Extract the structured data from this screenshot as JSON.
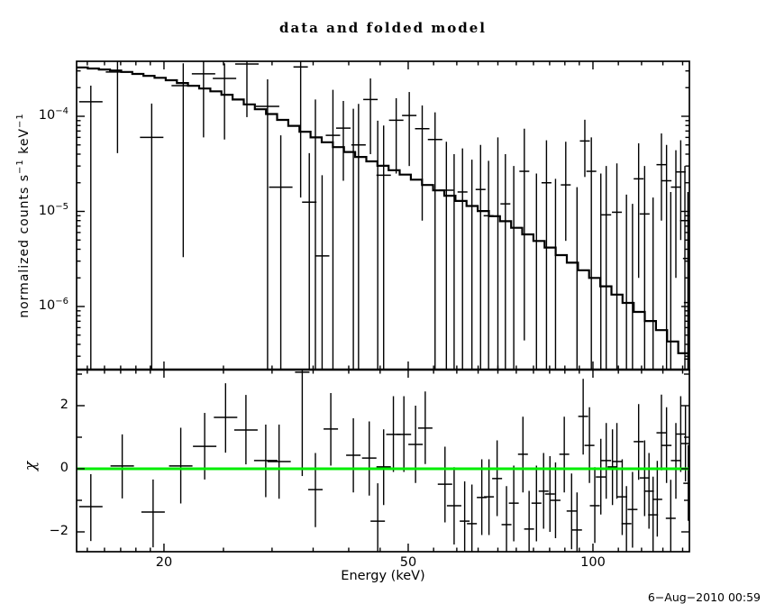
{
  "chart_data": {
    "type": "line",
    "title": "data and folded model",
    "xlabel": "Energy (keV)",
    "timestamp": "6−Aug−2010 00:59",
    "x_scale": "log",
    "x_range": [
      14.41,
      143.6
    ],
    "x_major_ticks": [
      20,
      50,
      100
    ],
    "x_minor_ticks": [
      15,
      16,
      17,
      18,
      19,
      25,
      30,
      35,
      40,
      45,
      55,
      60,
      65,
      70,
      75,
      80,
      85,
      90,
      95,
      110,
      120,
      130,
      140
    ],
    "grid": false,
    "legend": "none",
    "panels": [
      {
        "id": "spectrum",
        "ylabel_parts": [
          {
            "text": "normalized counts s"
          },
          {
            "text": "−1",
            "sup": true
          },
          {
            "text": " keV"
          },
          {
            "text": "−1",
            "sup": true
          }
        ],
        "y_scale": "log",
        "y_range": [
          2.17e-07,
          0.0003785
        ],
        "y_major_ticks": [
          {
            "base": "10",
            "exp": "−4",
            "value": 0.0001
          },
          {
            "base": "10",
            "exp": "−5",
            "value": 1e-05
          },
          {
            "base": "10",
            "exp": "−6",
            "value": 1e-06
          }
        ],
        "model_color": "#000000",
        "model_n_bins": 55,
        "model_anchors": [
          [
            14.41,
            0.00033
          ],
          [
            17,
            0.0003
          ],
          [
            20,
            0.00025
          ],
          [
            25,
            0.000175
          ],
          [
            30,
            0.000105
          ],
          [
            35,
            6.2e-05
          ],
          [
            42,
            3.7e-05
          ],
          [
            50,
            2.37e-05
          ],
          [
            60,
            1.35e-05
          ],
          [
            72,
            7.9e-06
          ],
          [
            85,
            4.2e-06
          ],
          [
            100,
            2.06e-06
          ],
          [
            115,
            1.05e-06
          ],
          [
            130,
            5.5e-07
          ],
          [
            143.6,
            2.8e-07
          ]
        ],
        "points_note": "each point: [energy_keV, value, err_low_end, err_high_end]; null value = bare error bar; null end = clipped at panel edge",
        "points": [
          [
            15.2,
            0.000142,
            null,
            0.00021
          ],
          [
            16.8,
            0.000292,
            4.1e-05,
            null
          ],
          [
            19.1,
            6e-05,
            null,
            0.000136
          ],
          [
            21.5,
            0.00021,
            3.3e-06,
            0.00036
          ],
          [
            23.2,
            0.00028,
            6e-05,
            null
          ],
          [
            25.1,
            0.00025,
            5.7e-05,
            0.00036
          ],
          [
            27.3,
            0.000355,
            9.8e-05,
            null
          ],
          [
            29.5,
            0.000127,
            null,
            0.000245
          ],
          [
            31.0,
            1.8e-05,
            null,
            6.3e-05
          ],
          [
            33.4,
            0.00033,
            1.4e-05,
            null
          ],
          [
            34.5,
            1.25e-05,
            null,
            4.1e-05
          ],
          [
            35.3,
            null,
            null,
            0.00015
          ],
          [
            36.2,
            3.4e-06,
            null,
            2.4e-05
          ],
          [
            37.7,
            6.3e-05,
            null,
            0.00019
          ],
          [
            39.2,
            7.5e-05,
            2.1e-05,
            0.000145
          ],
          [
            40.7,
            null,
            null,
            0.00012
          ],
          [
            41.5,
            5e-05,
            null,
            0.000135
          ],
          [
            43.4,
            0.00015,
            4e-05,
            0.00025
          ],
          [
            44.6,
            null,
            null,
            9e-05
          ],
          [
            45.6,
            2.4e-05,
            null,
            8e-05
          ],
          [
            47.8,
            9.1e-05,
            2.5e-05,
            0.000155
          ],
          [
            50.2,
            0.000102,
            3e-05,
            0.00018
          ],
          [
            52.7,
            7.4e-05,
            8e-06,
            0.00013
          ],
          [
            55.3,
            5.7e-05,
            null,
            0.00011
          ],
          [
            57.7,
            1.67e-05,
            null,
            5.4e-05
          ],
          [
            59.4,
            null,
            null,
            4e-05
          ],
          [
            61.3,
            1.6e-05,
            null,
            4.6e-05
          ],
          [
            63.5,
            null,
            null,
            3.5e-05
          ],
          [
            65.6,
            1.7e-05,
            null,
            5e-05
          ],
          [
            67.6,
            9e-06,
            null,
            3.4e-05
          ],
          [
            70.0,
            null,
            null,
            6e-05
          ],
          [
            72.0,
            1.2e-05,
            null,
            4e-05
          ],
          [
            74.3,
            null,
            null,
            3e-05
          ],
          [
            77.3,
            2.64e-05,
            4.4e-07,
            7.4e-05
          ],
          [
            80.9,
            null,
            null,
            2.5e-05
          ],
          [
            84.0,
            2e-05,
            null,
            5.6e-05
          ],
          [
            86.9,
            null,
            null,
            2.2e-05
          ],
          [
            90.3,
            1.9e-05,
            4.9e-06,
            5.4e-05
          ],
          [
            94.2,
            null,
            null,
            1.8e-05
          ],
          [
            97.0,
            5.5e-05,
            2.3e-05,
            9.2e-05
          ],
          [
            99.4,
            2.64e-05,
            null,
            6e-05
          ],
          [
            103.0,
            null,
            null,
            2.5e-05
          ],
          [
            105.1,
            9.2e-06,
            null,
            3e-05
          ],
          [
            109.4,
            9.8e-06,
            null,
            3.2e-05
          ],
          [
            113.4,
            null,
            null,
            1.5e-05
          ],
          [
            116.0,
            null,
            null,
            1.2e-05
          ],
          [
            118.7,
            2.2e-05,
            2e-06,
            5.2e-05
          ],
          [
            121.4,
            9.4e-06,
            null,
            3e-05
          ],
          [
            125.3,
            null,
            null,
            1.4e-05
          ],
          [
            129.3,
            3.1e-05,
            8e-06,
            6.6e-05
          ],
          [
            131.8,
            2.1e-05,
            null,
            5e-05
          ],
          [
            133.9,
            null,
            null,
            1.6e-05
          ],
          [
            136.5,
            1.8e-05,
            2e-06,
            4.4e-05
          ],
          [
            139.0,
            2.6e-05,
            5e-06,
            5.6e-05
          ],
          [
            141.2,
            8e-06,
            null,
            3e-05
          ],
          [
            142.8,
            3.2e-06,
            null,
            1.6e-05
          ],
          [
            143.3,
            1.1e-06,
            null,
            8e-06
          ],
          [
            143.5,
            2.8e-07,
            null,
            4e-06
          ]
        ]
      },
      {
        "id": "residuals",
        "ylabel": "χ",
        "y_scale": "linear",
        "y_range": [
          -2.63,
          3.14
        ],
        "y_major_ticks": [
          {
            "label": "2",
            "value": 2
          },
          {
            "label": "0",
            "value": 0
          },
          {
            "label": "−2",
            "value": -2
          }
        ],
        "y_minor_ticks": [
          3,
          1,
          -1
        ],
        "zero_line": {
          "value": 0,
          "color": "#00ee00"
        },
        "points_note": "each point: [energy_keV, chi, err_low_end, err_high_end]; null end = clipped at panel edge",
        "points": [
          [
            15.2,
            -1.2,
            -2.29,
            -0.17
          ],
          [
            17.1,
            0.09,
            -0.94,
            1.09
          ],
          [
            19.2,
            -1.37,
            -2.49,
            -0.34
          ],
          [
            21.3,
            0.09,
            -1.1,
            1.3
          ],
          [
            23.3,
            0.71,
            -0.34,
            1.77
          ],
          [
            25.2,
            1.63,
            0.51,
            2.71
          ],
          [
            27.2,
            1.23,
            0.14,
            2.34
          ],
          [
            29.3,
            0.26,
            -0.9,
            1.4
          ],
          [
            30.8,
            0.23,
            -0.95,
            1.4
          ],
          [
            33.6,
            3.06,
            -0.23,
            null
          ],
          [
            35.3,
            -0.66,
            -1.85,
            0.5
          ],
          [
            37.4,
            1.26,
            0.1,
            2.4
          ],
          [
            40.7,
            0.43,
            -0.75,
            1.6
          ],
          [
            43.2,
            0.34,
            -0.85,
            1.5
          ],
          [
            44.6,
            -1.66,
            null,
            -0.46
          ],
          [
            45.6,
            0.06,
            -1.15,
            1.25
          ],
          [
            47.3,
            1.09,
            -0.1,
            2.3
          ],
          [
            49.2,
            1.09,
            -0.1,
            2.3
          ],
          [
            51.4,
            0.77,
            -0.45,
            2.0
          ],
          [
            53.3,
            1.29,
            0.15,
            2.45
          ],
          [
            57.4,
            -0.49,
            -1.7,
            0.7
          ],
          [
            59.4,
            -1.17,
            -2.4,
            0.05
          ],
          [
            61.8,
            -1.66,
            null,
            -0.4
          ],
          [
            63.5,
            -1.74,
            null,
            -0.5
          ],
          [
            65.9,
            -0.91,
            -2.1,
            0.3
          ],
          [
            67.7,
            -0.89,
            -2.1,
            0.3
          ],
          [
            69.8,
            -0.31,
            -1.5,
            0.9
          ],
          [
            72.3,
            -1.77,
            null,
            -0.55
          ],
          [
            74.3,
            -1.09,
            -2.3,
            0.1
          ],
          [
            76.9,
            0.46,
            -0.75,
            1.65
          ],
          [
            78.7,
            -1.91,
            null,
            -0.7
          ],
          [
            80.9,
            -1.09,
            -2.3,
            0.1
          ],
          [
            83.1,
            -0.71,
            -1.9,
            0.5
          ],
          [
            85.1,
            -0.8,
            -2.0,
            0.4
          ],
          [
            86.9,
            -1.0,
            -2.2,
            0.2
          ],
          [
            89.8,
            0.46,
            -0.75,
            1.65
          ],
          [
            92.3,
            -1.34,
            -2.55,
            -0.15
          ],
          [
            94.2,
            -1.94,
            null,
            -0.75
          ],
          [
            96.4,
            1.66,
            0.45,
            2.85
          ],
          [
            98.7,
            0.74,
            -0.45,
            1.95
          ],
          [
            100.7,
            -1.17,
            -2.35,
            0.05
          ],
          [
            103.0,
            -0.26,
            -1.45,
            0.95
          ],
          [
            105.1,
            0.26,
            -0.95,
            1.45
          ],
          [
            107.6,
            0.06,
            -1.15,
            1.25
          ],
          [
            109.4,
            0.23,
            -0.95,
            1.45
          ],
          [
            111.6,
            -0.89,
            -2.1,
            0.3
          ],
          [
            113.4,
            -1.74,
            null,
            -0.55
          ],
          [
            116.0,
            -1.29,
            -2.5,
            -0.1
          ],
          [
            118.7,
            0.86,
            -0.35,
            2.05
          ],
          [
            121.4,
            -0.29,
            -1.5,
            0.9
          ],
          [
            123.4,
            -0.71,
            -1.9,
            0.5
          ],
          [
            125.3,
            -1.46,
            null,
            -0.25
          ],
          [
            127.3,
            -0.97,
            -2.15,
            0.25
          ],
          [
            129.3,
            1.14,
            -0.05,
            2.35
          ],
          [
            131.8,
            0.74,
            -0.45,
            1.95
          ],
          [
            133.9,
            -1.57,
            null,
            -0.35
          ],
          [
            136.5,
            0.26,
            -0.95,
            1.45
          ],
          [
            139.0,
            1.1,
            -0.1,
            2.3
          ],
          [
            141.5,
            0.8,
            -0.4,
            2.0
          ],
          [
            143.0,
            -0.46,
            -1.65,
            0.75
          ]
        ]
      }
    ]
  }
}
